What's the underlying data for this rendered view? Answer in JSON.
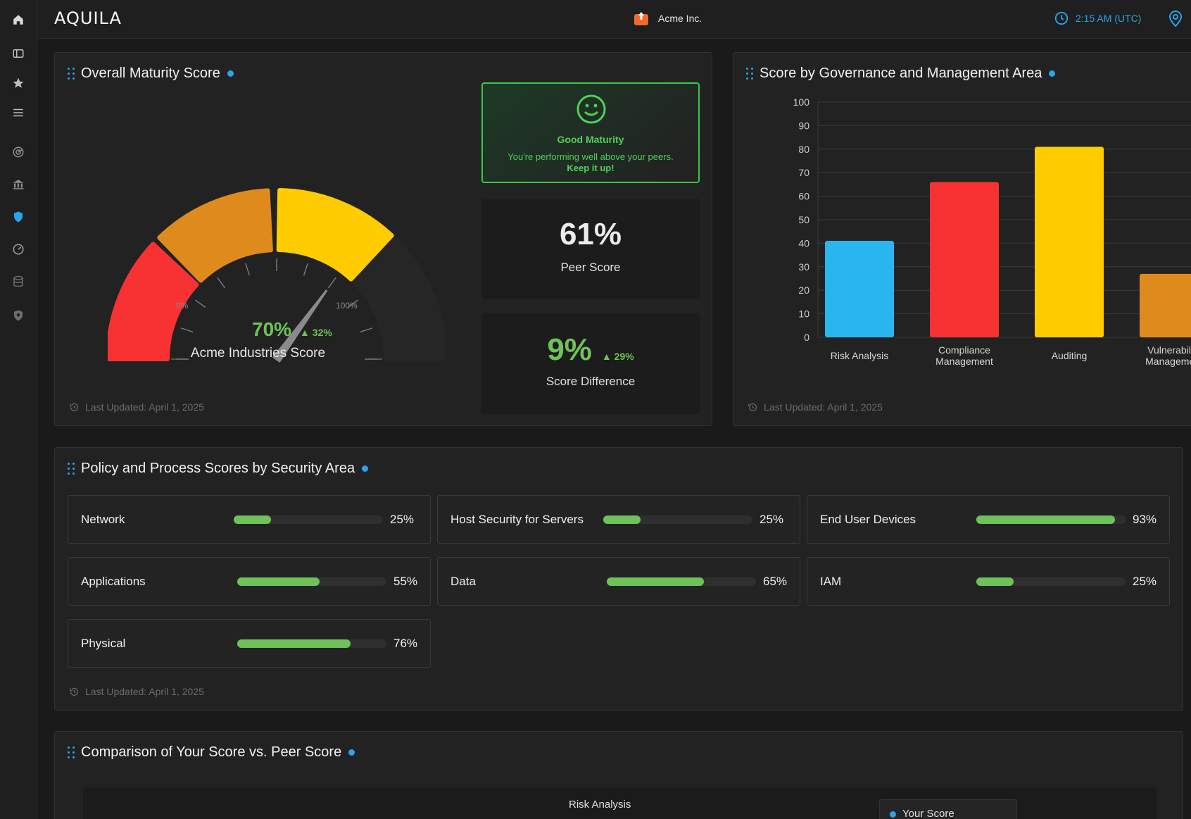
{
  "app": {
    "logo": "AQUILA",
    "org_name": "Acme Inc.",
    "time": "2:15 AM (UTC)"
  },
  "colors": {
    "accent": "#2aa4ec",
    "good": "#6fc15a",
    "red": "#f83232",
    "orange": "#df8a1c",
    "yellow": "#ffcc00",
    "blue": "#29b6f0"
  },
  "sidebar": {
    "icons": [
      "home-icon",
      "sidebar-toggle-icon",
      "star-icon",
      "menu-icon",
      "radar-icon",
      "bank-icon",
      "shield-icon",
      "gauge-icon",
      "database-icon",
      "badge-icon"
    ]
  },
  "maturity_card": {
    "title": "Overall Maturity Score",
    "gauge": {
      "value": 70,
      "min_label": "0%",
      "max_label": "100%"
    },
    "score_value": "70%",
    "score_delta": "32%",
    "score_label": "Acme Industries Score",
    "status_title": "Good Maturity",
    "status_line1": "You're performing well above your peers.",
    "status_line2": "Keep it up!",
    "peer_value": "61%",
    "peer_label": "Peer Score",
    "diff_value": "9%",
    "diff_delta": "29%",
    "diff_label": "Score Difference",
    "updated": "Last Updated: April 1, 2025"
  },
  "governance_card": {
    "title": "Score by Governance and Management Area",
    "updated": "Last Updated: April 1, 2025",
    "chart_data": {
      "type": "bar",
      "categories": [
        "Risk Analysis",
        "Compliance Management",
        "Auditing",
        "Vulnerability Management"
      ],
      "values": [
        41,
        66,
        81,
        27
      ],
      "colors": [
        "#29b6f0",
        "#f83232",
        "#ffcc00",
        "#df8a1c"
      ],
      "ylim": [
        0,
        100
      ],
      "yticks": [
        0,
        10,
        20,
        30,
        40,
        50,
        60,
        70,
        80,
        90,
        100
      ],
      "grid": true
    }
  },
  "policy_card": {
    "title": "Policy and Process Scores by Security Area",
    "updated": "Last Updated: April 1, 2025",
    "tiles": [
      {
        "name": "Network",
        "value": 0.25,
        "label": "25%"
      },
      {
        "name": "Host Security for Servers",
        "value": 0.25,
        "label": "25%"
      },
      {
        "name": "End User Devices",
        "value": 0.93,
        "label": "93%"
      },
      {
        "name": "Applications",
        "value": 0.55,
        "label": "55%"
      },
      {
        "name": "Data",
        "value": 0.65,
        "label": "65%"
      },
      {
        "name": "IAM",
        "value": 0.25,
        "label": "25%"
      },
      {
        "name": "Physical",
        "value": 0.76,
        "label": "76%"
      }
    ]
  },
  "comparison_card": {
    "title": "Comparison of Your Score vs. Peer Score",
    "axis_label": "Risk Analysis",
    "legend": "Your Score"
  }
}
